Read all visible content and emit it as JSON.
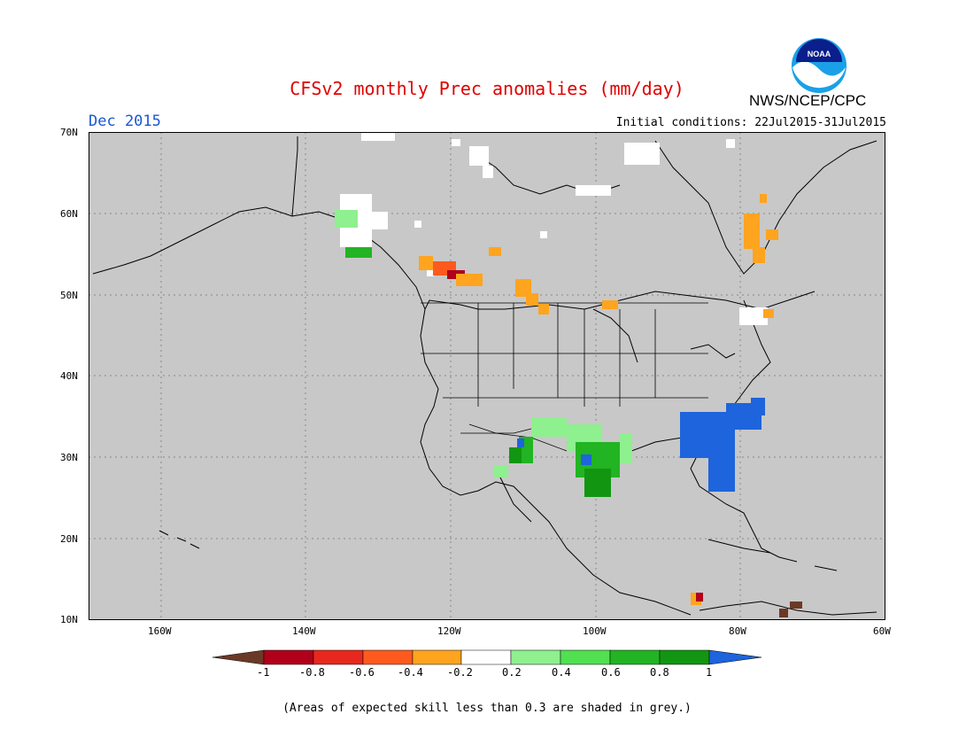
{
  "header": {
    "title": "CFSv2 monthly Prec anomalies (mm/day)",
    "month": "Dec 2015",
    "initial_conditions": "Initial conditions: 22Jul2015-31Jul2015",
    "agency": "NWS/NCEP/CPC",
    "logo_text": "NOAA"
  },
  "map": {
    "lat_labels": [
      "70N",
      "60N",
      "50N",
      "40N",
      "30N",
      "20N",
      "10N"
    ],
    "lon_labels": [
      "160W",
      "140W",
      "120W",
      "100W",
      "80W",
      "60W"
    ],
    "extent": {
      "lon": [
        -170,
        -60
      ],
      "lat": [
        10,
        70
      ]
    },
    "background": "#c8c8c8",
    "grid": "dotted"
  },
  "colorbar": {
    "labels": [
      "-1",
      "-0.8",
      "-0.6",
      "-0.4",
      "-0.2",
      "0.2",
      "0.4",
      "0.6",
      "0.8",
      "1"
    ],
    "colors": [
      "#6b3a26",
      "#b0001a",
      "#e8281e",
      "#ff5a1e",
      "#ffa41e",
      "#ffffff",
      "#8ef08e",
      "#50e050",
      "#22b422",
      "#129612",
      "#1e64dc"
    ]
  },
  "footnote": "(Areas of expected skill less than 0.3 are shaded in grey.)"
}
